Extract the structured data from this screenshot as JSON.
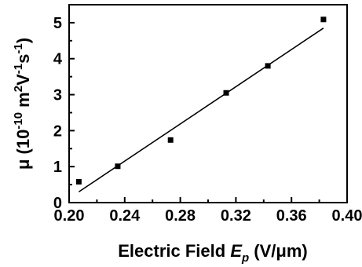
{
  "chart_data": {
    "type": "scatter",
    "title": "",
    "xlabel": {
      "prefix": "Electric Field ",
      "var": "E",
      "sub": "p",
      "suffix": " (V/μm)"
    },
    "ylabel": {
      "sym": "μ",
      "open": " (10",
      "exp1": "-10",
      "m": " m",
      "exp2": "2",
      "v": "V",
      "exp3": "-1",
      "s": "s",
      "exp4": "-1",
      "close": ")"
    },
    "xlim": [
      0.2,
      0.4
    ],
    "ylim": [
      0,
      5.5
    ],
    "x_ticks": [
      0.2,
      0.24,
      0.28,
      0.32,
      0.36,
      0.4
    ],
    "x_tick_labels": [
      "0.20",
      "0.24",
      "0.28",
      "0.32",
      "0.36",
      "0.40"
    ],
    "y_ticks": [
      0,
      1,
      2,
      3,
      4,
      5
    ],
    "y_tick_labels": [
      "0",
      "1",
      "2",
      "3",
      "4",
      "5"
    ],
    "grid": false,
    "series": [
      {
        "type": "scatter",
        "x": [
          0.207,
          0.235,
          0.273,
          0.313,
          0.343,
          0.383
        ],
        "y": [
          0.58,
          1.01,
          1.74,
          3.05,
          3.8,
          5.09
        ]
      },
      {
        "type": "line",
        "x": [
          0.207,
          0.383
        ],
        "y": [
          0.3,
          4.85
        ]
      }
    ]
  }
}
